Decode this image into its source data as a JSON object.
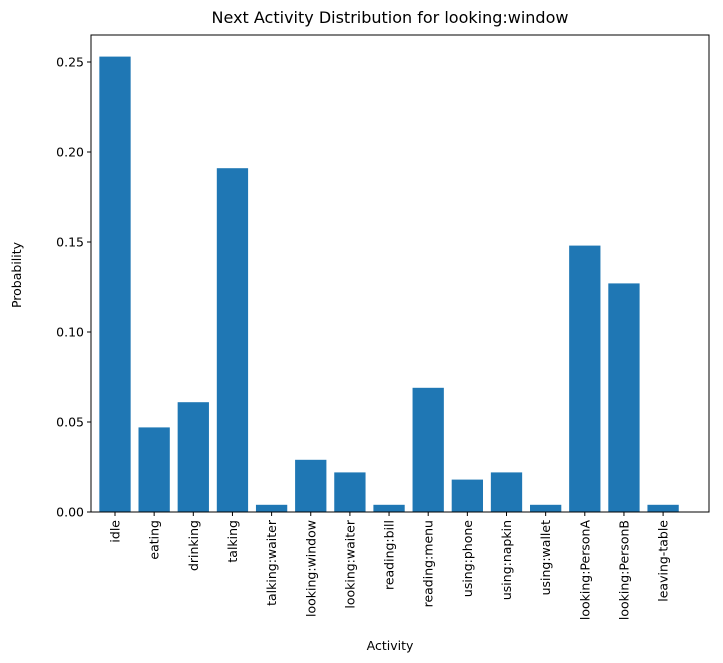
{
  "chart_data": {
    "type": "bar",
    "title": "Next Activity Distribution for looking:window",
    "xlabel": "Activity",
    "ylabel": "Probability",
    "categories": [
      "idle",
      "eating",
      "drinking",
      "talking",
      "talking:waiter",
      "looking:window",
      "looking:waiter",
      "reading:bill",
      "reading:menu",
      "using:phone",
      "using:napkin",
      "using:wallet",
      "looking:PersonA",
      "looking:PersonB",
      "leaving-table"
    ],
    "values": [
      0.253,
      0.047,
      0.061,
      0.191,
      0.004,
      0.029,
      0.022,
      0.004,
      0.069,
      0.018,
      0.022,
      0.004,
      0.148,
      0.127,
      0.004
    ],
    "ylim": [
      0,
      0.265
    ],
    "yticks": [
      0.0,
      0.05,
      0.1,
      0.15,
      0.2,
      0.25
    ],
    "ytick_labels": [
      "0.00",
      "0.05",
      "0.10",
      "0.15",
      "0.20",
      "0.25"
    ],
    "color": "#1f77b4",
    "grid": false,
    "legend": "none"
  }
}
